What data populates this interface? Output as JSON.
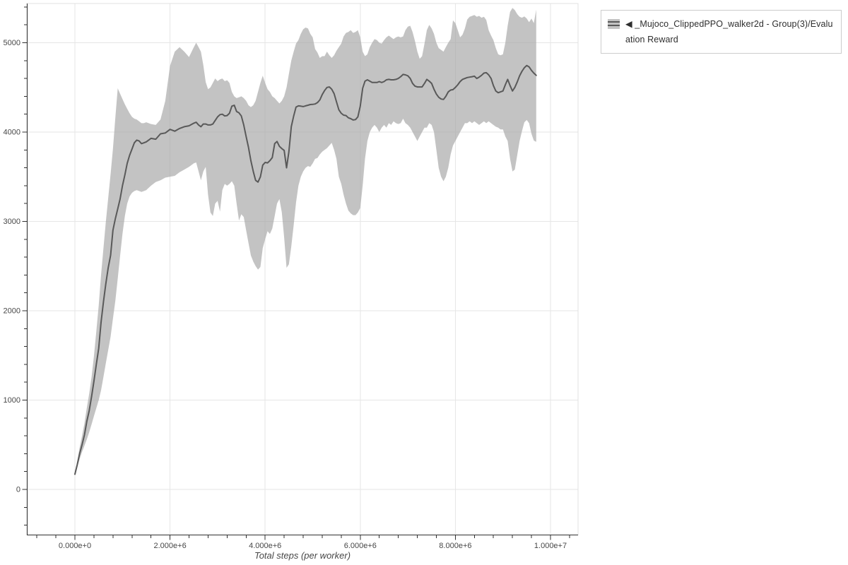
{
  "page": {
    "background": "#ffffff"
  },
  "legend": {
    "label": "◀ _Mujoco_ClippedPPO_walker2d - Group(3)/Evaluation Reward",
    "swatch_band_color": "#c3c3c3",
    "swatch_line_color": "#595959",
    "border_color": "#cccccc"
  },
  "colors": {
    "band": "#c3c3c3",
    "mean_line": "#595959",
    "grid": "#e6e6e6",
    "outline": "#e0e0e0",
    "axis": "#303030",
    "tick_label": "#474747",
    "axis_title": "#474747"
  },
  "chart_data": {
    "type": "line",
    "title": "",
    "xlabel": "Total steps (per worker)",
    "ylabel": "",
    "legend_position": "top-right-outside",
    "grid": true,
    "xlim_steps": [
      -1000000,
      10600000
    ],
    "ylim": [
      -500,
      5440
    ],
    "x_ticks": {
      "values_e6": [
        0,
        2,
        4,
        6,
        8,
        10
      ],
      "labels": [
        "0.000e+0",
        "2.000e+6",
        "4.000e+6",
        "6.000e+6",
        "8.000e+6",
        "1.000e+7"
      ],
      "minor_step_e6": 0.4,
      "minor_range_e6": [
        -0.8,
        10.4
      ]
    },
    "y_ticks": {
      "values": [
        0,
        1000,
        2000,
        3000,
        4000,
        5000
      ],
      "labels": [
        "0",
        "1000",
        "2000",
        "3000",
        "4000",
        "5000"
      ],
      "minor_step": 200,
      "minor_range": [
        -400,
        5400
      ]
    },
    "series": [
      {
        "name": "◀ _Mujoco_ClippedPPO_walker2d - Group(3)/Evaluation Reward",
        "line_color": "#595959",
        "band_color": "#c3c3c3",
        "x_unit": "millions of steps",
        "points_format": [
          "x_e6",
          "mean",
          "band_low",
          "band_high"
        ],
        "points": [
          [
            0.0,
            170,
            155,
            185
          ],
          [
            0.05,
            280,
            250,
            320
          ],
          [
            0.1,
            400,
            340,
            470
          ],
          [
            0.15,
            500,
            420,
            600
          ],
          [
            0.2,
            610,
            490,
            740
          ],
          [
            0.25,
            760,
            560,
            910
          ],
          [
            0.3,
            880,
            640,
            1070
          ],
          [
            0.35,
            1040,
            730,
            1260
          ],
          [
            0.4,
            1210,
            820,
            1490
          ],
          [
            0.45,
            1400,
            910,
            1770
          ],
          [
            0.5,
            1580,
            1000,
            2060
          ],
          [
            0.55,
            1870,
            1110,
            2400
          ],
          [
            0.6,
            2100,
            1260,
            2700
          ],
          [
            0.65,
            2300,
            1410,
            2990
          ],
          [
            0.7,
            2480,
            1560,
            3260
          ],
          [
            0.75,
            2620,
            1710,
            3530
          ],
          [
            0.8,
            2900,
            1910,
            3810
          ],
          [
            0.85,
            3030,
            2110,
            4160
          ],
          [
            0.9,
            3140,
            2360,
            4490
          ],
          [
            0.95,
            3250,
            2610,
            4430
          ],
          [
            1.0,
            3400,
            2860,
            4370
          ],
          [
            1.05,
            3520,
            3060,
            4310
          ],
          [
            1.1,
            3650,
            3200,
            4260
          ],
          [
            1.15,
            3740,
            3280,
            4210
          ],
          [
            1.2,
            3810,
            3320,
            4170
          ],
          [
            1.25,
            3880,
            3340,
            4150
          ],
          [
            1.3,
            3910,
            3350,
            4140
          ],
          [
            1.35,
            3900,
            3340,
            4120
          ],
          [
            1.4,
            3870,
            3330,
            4100
          ],
          [
            1.45,
            3880,
            3340,
            4100
          ],
          [
            1.5,
            3890,
            3350,
            4110
          ],
          [
            1.6,
            3930,
            3400,
            4090
          ],
          [
            1.7,
            3920,
            3440,
            4080
          ],
          [
            1.8,
            3980,
            3460,
            4140
          ],
          [
            1.9,
            3990,
            3490,
            4350
          ],
          [
            2.0,
            4030,
            3500,
            4740
          ],
          [
            2.1,
            4010,
            3510,
            4900
          ],
          [
            2.2,
            4040,
            3550,
            4950
          ],
          [
            2.3,
            4060,
            3580,
            4900
          ],
          [
            2.4,
            4070,
            3610,
            4840
          ],
          [
            2.5,
            4100,
            3650,
            4950
          ],
          [
            2.55,
            4110,
            3660,
            5000
          ],
          [
            2.6,
            4080,
            3560,
            4950
          ],
          [
            2.65,
            4060,
            3460,
            4900
          ],
          [
            2.7,
            4090,
            3560,
            4750
          ],
          [
            2.75,
            4090,
            3610,
            4560
          ],
          [
            2.8,
            4080,
            3300,
            4480
          ],
          [
            2.85,
            4080,
            3100,
            4500
          ],
          [
            2.9,
            4090,
            3060,
            4550
          ],
          [
            2.95,
            4130,
            3200,
            4600
          ],
          [
            3.0,
            4170,
            3230,
            4570
          ],
          [
            3.05,
            4195,
            3110,
            4590
          ],
          [
            3.1,
            4200,
            3350,
            4600
          ],
          [
            3.15,
            4180,
            3420,
            4570
          ],
          [
            3.2,
            4185,
            3400,
            4580
          ],
          [
            3.25,
            4210,
            3420,
            4550
          ],
          [
            3.3,
            4290,
            3450,
            4450
          ],
          [
            3.35,
            4300,
            3400,
            4400
          ],
          [
            3.4,
            4230,
            3200,
            4380
          ],
          [
            3.45,
            4215,
            3010,
            4390
          ],
          [
            3.5,
            4180,
            3080,
            4400
          ],
          [
            3.55,
            4080,
            3050,
            4380
          ],
          [
            3.6,
            3950,
            2900,
            4350
          ],
          [
            3.65,
            3830,
            2760,
            4300
          ],
          [
            3.7,
            3680,
            2620,
            4280
          ],
          [
            3.75,
            3560,
            2550,
            4300
          ],
          [
            3.8,
            3460,
            2500,
            4350
          ],
          [
            3.85,
            3440,
            2460,
            4450
          ],
          [
            3.9,
            3500,
            2490,
            4550
          ],
          [
            3.95,
            3630,
            2700,
            4630
          ],
          [
            4.0,
            3660,
            2800,
            4550
          ],
          [
            4.05,
            3655,
            2890,
            4480
          ],
          [
            4.1,
            3680,
            2860,
            4450
          ],
          [
            4.15,
            3715,
            2920,
            4400
          ],
          [
            4.2,
            3870,
            3060,
            4380
          ],
          [
            4.25,
            3895,
            3200,
            4350
          ],
          [
            4.3,
            3840,
            3250,
            4320
          ],
          [
            4.35,
            3815,
            3100,
            4350
          ],
          [
            4.4,
            3795,
            2820,
            4400
          ],
          [
            4.45,
            3600,
            2480,
            4500
          ],
          [
            4.5,
            3780,
            2520,
            4650
          ],
          [
            4.55,
            4060,
            2720,
            4800
          ],
          [
            4.6,
            4180,
            2960,
            4900
          ],
          [
            4.65,
            4280,
            3210,
            4990
          ],
          [
            4.7,
            4293,
            3400,
            5030
          ],
          [
            4.75,
            4290,
            3500,
            5100
          ],
          [
            4.8,
            4285,
            3560,
            5150
          ],
          [
            4.85,
            4293,
            3600,
            5170
          ],
          [
            4.9,
            4300,
            3620,
            5160
          ],
          [
            4.95,
            4308,
            3610,
            5100
          ],
          [
            5.0,
            4310,
            3650,
            5060
          ],
          [
            5.05,
            4315,
            3700,
            4930
          ],
          [
            5.1,
            4330,
            3710,
            4890
          ],
          [
            5.15,
            4360,
            3750,
            4830
          ],
          [
            5.2,
            4420,
            3780,
            4850
          ],
          [
            5.25,
            4465,
            3800,
            4850
          ],
          [
            5.3,
            4500,
            3820,
            4900
          ],
          [
            5.35,
            4505,
            3850,
            4860
          ],
          [
            5.4,
            4480,
            3880,
            4830
          ],
          [
            5.45,
            4430,
            3800,
            4860
          ],
          [
            5.5,
            4340,
            3700,
            4910
          ],
          [
            5.55,
            4250,
            3500,
            4950
          ],
          [
            5.6,
            4210,
            3420,
            4990
          ],
          [
            5.65,
            4190,
            3300,
            5070
          ],
          [
            5.7,
            4185,
            3200,
            5110
          ],
          [
            5.75,
            4160,
            3120,
            5120
          ],
          [
            5.8,
            4150,
            3090,
            5140
          ],
          [
            5.85,
            4135,
            3070,
            5110
          ],
          [
            5.9,
            4140,
            3070,
            5120
          ],
          [
            5.95,
            4170,
            3100,
            5140
          ],
          [
            6.0,
            4290,
            3150,
            5060
          ],
          [
            6.05,
            4490,
            3400,
            4900
          ],
          [
            6.1,
            4570,
            3700,
            4850
          ],
          [
            6.15,
            4585,
            3900,
            4870
          ],
          [
            6.2,
            4570,
            4000,
            4950
          ],
          [
            6.25,
            4555,
            4050,
            5000
          ],
          [
            6.3,
            4555,
            4080,
            5040
          ],
          [
            6.35,
            4555,
            4050,
            5030
          ],
          [
            6.4,
            4565,
            4000,
            5000
          ],
          [
            6.45,
            4555,
            4050,
            4990
          ],
          [
            6.5,
            4565,
            4080,
            5030
          ],
          [
            6.55,
            4585,
            4050,
            5060
          ],
          [
            6.6,
            4590,
            4100,
            5080
          ],
          [
            6.65,
            4585,
            4080,
            5060
          ],
          [
            6.7,
            4585,
            4120,
            5040
          ],
          [
            6.75,
            4590,
            4100,
            5060
          ],
          [
            6.8,
            4600,
            4090,
            5070
          ],
          [
            6.85,
            4620,
            4100,
            5060
          ],
          [
            6.9,
            4645,
            4150,
            5070
          ],
          [
            6.95,
            4640,
            4100,
            5140
          ],
          [
            7.0,
            4630,
            4080,
            5180
          ],
          [
            7.05,
            4600,
            4050,
            5190
          ],
          [
            7.1,
            4545,
            4000,
            5120
          ],
          [
            7.15,
            4515,
            3950,
            5020
          ],
          [
            7.2,
            4505,
            3900,
            4900
          ],
          [
            7.25,
            4505,
            3950,
            4820
          ],
          [
            7.3,
            4505,
            4000,
            4850
          ],
          [
            7.35,
            4545,
            4050,
            4990
          ],
          [
            7.4,
            4590,
            4050,
            5140
          ],
          [
            7.45,
            4570,
            4100,
            5200
          ],
          [
            7.5,
            4545,
            4080,
            5160
          ],
          [
            7.55,
            4480,
            4000,
            5100
          ],
          [
            7.6,
            4425,
            3800,
            5000
          ],
          [
            7.65,
            4390,
            3600,
            4940
          ],
          [
            7.7,
            4370,
            3500,
            4920
          ],
          [
            7.75,
            4365,
            3450,
            4900
          ],
          [
            7.8,
            4400,
            3500,
            4950
          ],
          [
            7.85,
            4450,
            3600,
            5000
          ],
          [
            7.9,
            4470,
            3750,
            5040
          ],
          [
            7.95,
            4475,
            3850,
            5250
          ],
          [
            8.0,
            4500,
            3900,
            5220
          ],
          [
            8.05,
            4530,
            3950,
            5140
          ],
          [
            8.1,
            4565,
            4000,
            5060
          ],
          [
            8.15,
            4590,
            4050,
            5090
          ],
          [
            8.2,
            4600,
            4100,
            5160
          ],
          [
            8.25,
            4610,
            4100,
            5260
          ],
          [
            8.3,
            4615,
            4120,
            5290
          ],
          [
            8.35,
            4620,
            4100,
            5300
          ],
          [
            8.4,
            4625,
            4120,
            5310
          ],
          [
            8.45,
            4600,
            4100,
            5290
          ],
          [
            8.5,
            4615,
            4080,
            5300
          ],
          [
            8.55,
            4635,
            4100,
            5280
          ],
          [
            8.6,
            4660,
            4120,
            5290
          ],
          [
            8.65,
            4665,
            4100,
            5255
          ],
          [
            8.7,
            4640,
            4120,
            5140
          ],
          [
            8.75,
            4600,
            4100,
            5080
          ],
          [
            8.8,
            4520,
            4080,
            5030
          ],
          [
            8.85,
            4460,
            4060,
            4940
          ],
          [
            8.9,
            4440,
            4050,
            4870
          ],
          [
            8.95,
            4450,
            4030,
            4860
          ],
          [
            9.0,
            4460,
            4030,
            4870
          ],
          [
            9.05,
            4530,
            3950,
            5000
          ],
          [
            9.1,
            4590,
            3900,
            5190
          ],
          [
            9.15,
            4520,
            3700,
            5345
          ],
          [
            9.2,
            4460,
            3560,
            5390
          ],
          [
            9.25,
            4500,
            3580,
            5365
          ],
          [
            9.3,
            4560,
            3740,
            5320
          ],
          [
            9.35,
            4630,
            3900,
            5290
          ],
          [
            9.4,
            4680,
            4010,
            5280
          ],
          [
            9.45,
            4720,
            4110,
            5295
          ],
          [
            9.5,
            4745,
            4135,
            5270
          ],
          [
            9.55,
            4730,
            4100,
            5230
          ],
          [
            9.6,
            4690,
            3980,
            5270
          ],
          [
            9.65,
            4660,
            3905,
            5220
          ],
          [
            9.7,
            4635,
            3890,
            5370
          ]
        ]
      }
    ]
  }
}
